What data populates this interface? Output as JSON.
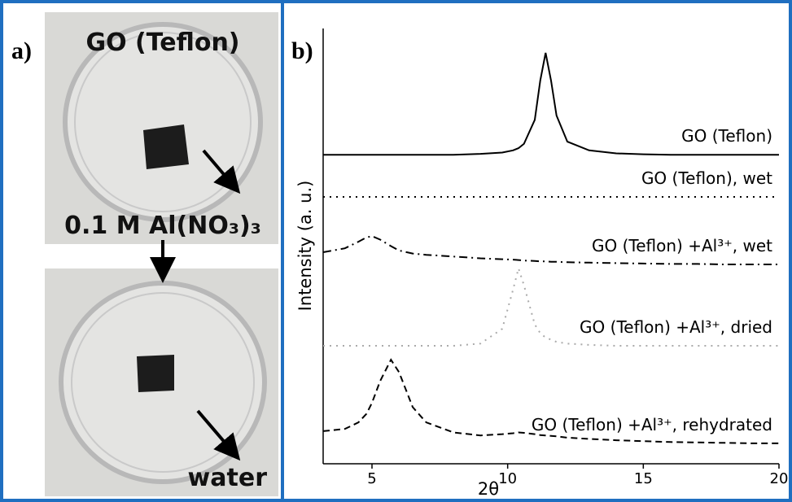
{
  "panel_a": {
    "label": "a)",
    "top_caption": "GO (Teflon)",
    "middle_caption": "0.1 M Al(NO₃)₃",
    "bottom_caption": "water"
  },
  "panel_b_label": "b)",
  "chart_data": {
    "type": "line",
    "x_label": "2θ",
    "y_label": "Intensity (a. u.)",
    "x": [
      3.2,
      4,
      4.5,
      4.8,
      5,
      5.3,
      5.7,
      6,
      6.5,
      7,
      8,
      9,
      9.8,
      10.2,
      10.4,
      10.6,
      11,
      11.2,
      11.4,
      11.6,
      11.8,
      12.2,
      13,
      14,
      15,
      16,
      17,
      18,
      19,
      20
    ],
    "xlim": [
      3.2,
      20
    ],
    "xticks": [
      5,
      10,
      15,
      20
    ],
    "ylim": [
      0,
      100
    ],
    "series": [
      {
        "name": "GO (Teflon)",
        "color": "#000000",
        "style": "solid",
        "values": [
          71,
          71,
          71,
          71,
          71,
          71,
          71,
          71,
          71,
          71,
          71,
          71.2,
          71.5,
          72,
          72.5,
          73.5,
          79,
          88,
          94.4,
          88,
          80,
          74,
          72,
          71.3,
          71.1,
          71,
          71,
          71,
          71,
          71
        ]
      },
      {
        "name": "GO (Teflon), wet",
        "color": "#000000",
        "style": "dotted",
        "values": [
          61.3,
          61.3,
          61.3,
          61.3,
          61.3,
          61.3,
          61.3,
          61.3,
          61.3,
          61.3,
          61.3,
          61.3,
          61.3,
          61.3,
          61.3,
          61.3,
          61.3,
          61.3,
          61.3,
          61.3,
          61.3,
          61.3,
          61.3,
          61.3,
          61.3,
          61.3,
          61.3,
          61.3,
          61.3,
          61.3
        ]
      },
      {
        "name": "GO (Teflon) +Al³⁺, wet",
        "color": "#000000",
        "style": "dashdot",
        "values": [
          48.6,
          49.5,
          51,
          52,
          52.3,
          51.5,
          50,
          49,
          48.3,
          48,
          47.6,
          47.2,
          47,
          46.9,
          46.8,
          46.7,
          46.6,
          46.5,
          46.5,
          46.4,
          46.4,
          46.3,
          46.2,
          46.1,
          46,
          45.9,
          45.9,
          45.8,
          45.8,
          45.8
        ]
      },
      {
        "name": "GO (Teflon) +Al³⁺, dried",
        "color": "#aaaaaa",
        "style": "dotted",
        "values": [
          27.1,
          27.1,
          27.1,
          27.1,
          27.1,
          27.1,
          27.1,
          27.1,
          27.1,
          27.1,
          27.1,
          27.6,
          31,
          40,
          44.9,
          41,
          32,
          30,
          29,
          28.5,
          28,
          27.6,
          27.3,
          27.1,
          27.1,
          27.1,
          27.1,
          27.1,
          27.1,
          27.1
        ]
      },
      {
        "name": "GO (Teflon) +Al³⁺, rehydrated",
        "color": "#000000",
        "style": "dashed",
        "values": [
          7.5,
          8,
          9.5,
          11.5,
          14,
          19,
          23.9,
          21,
          13,
          9.5,
          7.2,
          6.5,
          6.8,
          7,
          7.2,
          7.1,
          6.8,
          6.6,
          6.5,
          6.4,
          6.3,
          6,
          5.7,
          5.4,
          5.2,
          5,
          4.9,
          4.8,
          4.7,
          4.7
        ]
      }
    ]
  }
}
